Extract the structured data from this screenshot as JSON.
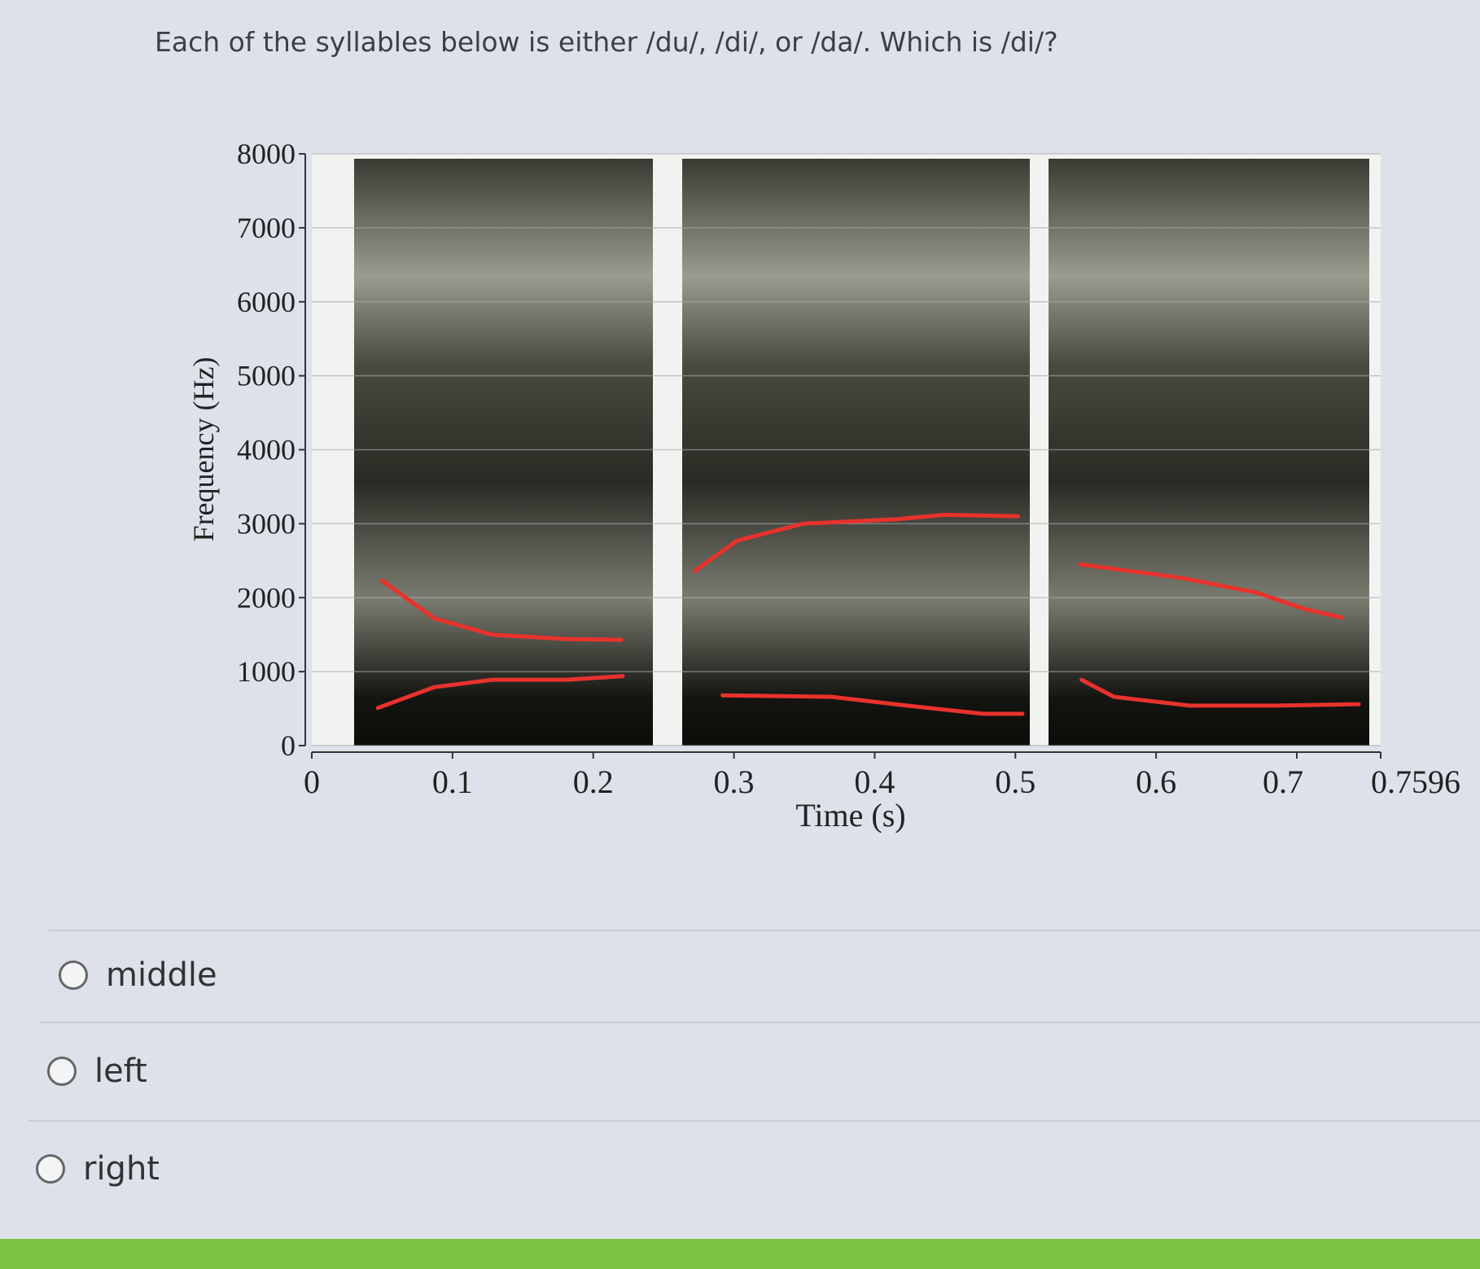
{
  "question": "Each of the syllables below is either /du/, /di/, or /da/. Which is /di/?",
  "chart_data": {
    "type": "spectrogram",
    "xlabel": "Time (s)",
    "ylabel": "Frequency (Hz)",
    "xlim": [
      0,
      0.7596
    ],
    "ylim": [
      0,
      8000
    ],
    "xticks": [
      0,
      0.1,
      0.2,
      0.3,
      0.4,
      0.5,
      0.6,
      0.7,
      0.7596
    ],
    "yticks": [
      0,
      1000,
      2000,
      3000,
      4000,
      5000,
      6000,
      7000,
      8000
    ],
    "grid": true,
    "series": [
      {
        "color": "#e8322c",
        "x": [
          0.05,
          0.087,
          0.128,
          0.181,
          0.22
        ],
        "values": [
          2230,
          1720,
          1500,
          1440,
          1430
        ]
      },
      {
        "color": "#e8322c",
        "x": [
          0.047,
          0.087,
          0.128,
          0.181,
          0.221
        ],
        "values": [
          510,
          790,
          890,
          890,
          940
        ]
      },
      {
        "color": "#e8322c",
        "x": [
          0.272,
          0.302,
          0.349,
          0.416,
          0.45,
          0.502
        ],
        "values": [
          2360,
          2770,
          3000,
          3060,
          3120,
          3100
        ]
      },
      {
        "color": "#e8322c",
        "x": [
          0.292,
          0.369,
          0.423,
          0.477,
          0.505
        ],
        "values": [
          680,
          660,
          540,
          430,
          430
        ]
      },
      {
        "color": "#e8322c",
        "x": [
          0.546,
          0.617,
          0.671,
          0.705,
          0.732
        ],
        "values": [
          2450,
          2270,
          2070,
          1850,
          1730
        ]
      },
      {
        "color": "#e8322c",
        "x": [
          0.547,
          0.57,
          0.624,
          0.685,
          0.744
        ],
        "values": [
          890,
          660,
          540,
          540,
          560
        ]
      }
    ]
  },
  "options": [
    "middle",
    "left",
    "right"
  ]
}
